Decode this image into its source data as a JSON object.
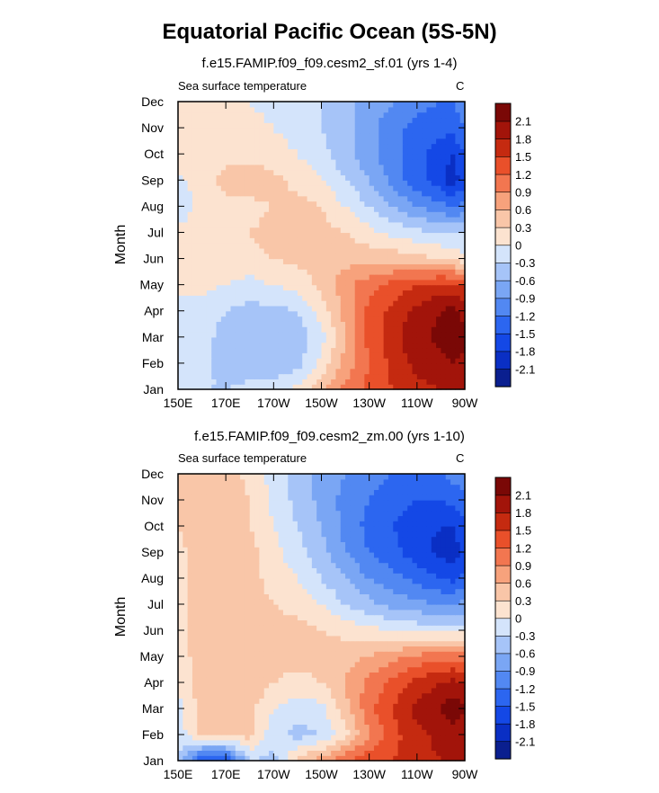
{
  "title": "Equatorial Pacific Ocean (5S-5N)",
  "palette": {
    "levels": [
      -2.1,
      -1.8,
      -1.5,
      -1.2,
      -0.9,
      -0.6,
      -0.3,
      0,
      0.3,
      0.6,
      0.9,
      1.2,
      1.5,
      1.8,
      2.1
    ],
    "level_labels": [
      "-2.1",
      "-1.8",
      "-1.5",
      "-1.2",
      "-0.9",
      "-0.6",
      "-0.3",
      "0",
      "0.3",
      "0.6",
      "0.9",
      "1.2",
      "1.5",
      "1.8",
      "2.1"
    ],
    "colors": [
      "#0a1f8f",
      "#0a2fc4",
      "#1448e6",
      "#2c66f0",
      "#5288f2",
      "#7aa6f4",
      "#a6c4f8",
      "#d4e4fb",
      "#fce3d0",
      "#f9c6a8",
      "#f7a27c",
      "#f27650",
      "#e9502a",
      "#c52a10",
      "#a2140a",
      "#7a0806"
    ]
  },
  "chart_data": [
    {
      "type": "heatmap",
      "subtitle": "f.e15.FAMIP.f09_f09.cesm2_sf.01 (yrs 1-4)",
      "left_label": "Sea surface temperature",
      "units": "C",
      "xlabel": "",
      "ylabel": "Month",
      "x_ticks": [
        "150E",
        "170E",
        "170W",
        "150W",
        "130W",
        "110W",
        "90W"
      ],
      "x_range_lon": [
        150,
        270
      ],
      "y_ticks": [
        "Jan",
        "Feb",
        "Mar",
        "Apr",
        "May",
        "Jun",
        "Jul",
        "Aug",
        "Sep",
        "Oct",
        "Nov",
        "Dec"
      ],
      "x_lon": [
        150,
        160,
        170,
        180,
        190,
        200,
        210,
        220,
        230,
        240,
        250,
        260,
        265,
        270
      ],
      "z": [
        [
          -0.2,
          -0.3,
          -0.3,
          -0.2,
          -0.1,
          0.1,
          0.5,
          1.0,
          1.3,
          1.5,
          1.7,
          1.8,
          1.9,
          2.0
        ],
        [
          -0.1,
          -0.2,
          -0.4,
          -0.5,
          -0.6,
          -0.4,
          0.1,
          0.7,
          1.2,
          1.6,
          1.9,
          2.0,
          2.1,
          2.0
        ],
        [
          -0.1,
          -0.2,
          -0.4,
          -0.5,
          -0.6,
          -0.5,
          -0.1,
          0.6,
          1.3,
          1.7,
          2.0,
          2.2,
          2.3,
          2.2
        ],
        [
          -0.1,
          -0.2,
          -0.3,
          -0.4,
          -0.4,
          -0.3,
          0.1,
          0.7,
          1.3,
          1.6,
          1.9,
          2.1,
          2.2,
          2.0
        ],
        [
          0.1,
          0.1,
          0.0,
          -0.1,
          0.0,
          0.1,
          0.4,
          0.8,
          1.1,
          1.3,
          1.5,
          1.6,
          1.6,
          1.5
        ],
        [
          0.2,
          0.2,
          0.2,
          0.2,
          0.3,
          0.4,
          0.4,
          0.5,
          0.5,
          0.5,
          0.4,
          0.3,
          0.2,
          0.1
        ],
        [
          0.1,
          0.2,
          0.3,
          0.3,
          0.4,
          0.5,
          0.4,
          0.3,
          0.1,
          -0.1,
          -0.2,
          -0.3,
          -0.3,
          -0.3
        ],
        [
          -0.3,
          0.2,
          0.2,
          0.2,
          0.3,
          0.4,
          0.3,
          0.0,
          -0.3,
          -0.6,
          -0.9,
          -1.1,
          -1.2,
          -1.1
        ],
        [
          -0.1,
          0.2,
          0.4,
          0.5,
          0.4,
          0.2,
          0.0,
          -0.3,
          -0.6,
          -1.0,
          -1.4,
          -1.7,
          -2.0,
          -1.6
        ],
        [
          0.2,
          0.2,
          0.2,
          0.2,
          0.1,
          0.0,
          -0.2,
          -0.5,
          -0.8,
          -1.1,
          -1.4,
          -1.7,
          -1.8,
          -1.5
        ],
        [
          0.1,
          0.2,
          0.2,
          0.1,
          0.0,
          -0.1,
          -0.3,
          -0.5,
          -0.8,
          -1.1,
          -1.3,
          -1.4,
          -1.4,
          -1.2
        ],
        [
          0.1,
          0.1,
          0.1,
          0.0,
          -0.1,
          -0.2,
          -0.3,
          -0.5,
          -0.7,
          -0.9,
          -1.1,
          -1.2,
          -1.2,
          -1.0
        ]
      ]
    },
    {
      "type": "heatmap",
      "subtitle": "f.e15.FAMIP.f09_f09.cesm2_zm.00 (yrs 1-10)",
      "left_label": "Sea surface temperature",
      "units": "C",
      "xlabel": "",
      "ylabel": "Month",
      "x_ticks": [
        "150E",
        "170E",
        "170W",
        "150W",
        "130W",
        "110W",
        "90W"
      ],
      "x_range_lon": [
        150,
        270
      ],
      "y_ticks": [
        "Jan",
        "Feb",
        "Mar",
        "Apr",
        "May",
        "Jun",
        "Jul",
        "Aug",
        "Sep",
        "Oct",
        "Nov",
        "Dec"
      ],
      "x_lon": [
        150,
        160,
        170,
        180,
        190,
        200,
        210,
        220,
        230,
        240,
        250,
        260,
        265,
        270
      ],
      "z": [
        [
          -0.3,
          -1.6,
          -1.7,
          -0.3,
          -0.4,
          0.4,
          0.8,
          1.2,
          1.4,
          1.5,
          1.7,
          1.8,
          1.9,
          1.8
        ],
        [
          -0.2,
          0.4,
          0.4,
          0.4,
          -0.2,
          -0.4,
          -0.3,
          0.2,
          0.9,
          1.4,
          1.7,
          1.9,
          2.0,
          1.9
        ],
        [
          -0.1,
          0.4,
          0.5,
          0.4,
          0.0,
          -0.2,
          -0.1,
          0.5,
          1.1,
          1.5,
          1.9,
          2.1,
          2.3,
          2.1
        ],
        [
          0.0,
          0.5,
          0.5,
          0.5,
          0.3,
          0.2,
          0.3,
          0.6,
          1.0,
          1.3,
          1.6,
          1.8,
          1.9,
          1.8
        ],
        [
          0.1,
          0.5,
          0.6,
          0.5,
          0.4,
          0.4,
          0.4,
          0.5,
          0.6,
          0.8,
          1.0,
          1.1,
          1.1,
          1.0
        ],
        [
          0.2,
          0.5,
          0.6,
          0.5,
          0.4,
          0.4,
          0.3,
          0.2,
          0.1,
          0.0,
          -0.1,
          -0.1,
          -0.1,
          -0.1
        ],
        [
          0.2,
          0.5,
          0.6,
          0.4,
          0.3,
          0.2,
          0.0,
          -0.3,
          -0.5,
          -0.7,
          -0.8,
          -0.9,
          -0.9,
          -0.8
        ],
        [
          0.1,
          0.5,
          0.6,
          0.4,
          0.2,
          0.0,
          -0.3,
          -0.6,
          -0.9,
          -1.1,
          -1.3,
          -1.5,
          -1.6,
          -1.4
        ],
        [
          0.2,
          0.5,
          0.6,
          0.4,
          0.1,
          -0.2,
          -0.5,
          -0.9,
          -1.2,
          -1.4,
          -1.7,
          -1.9,
          -2.0,
          -1.7
        ],
        [
          0.3,
          0.5,
          0.6,
          0.3,
          0.0,
          -0.3,
          -0.6,
          -1.0,
          -1.3,
          -1.5,
          -1.7,
          -1.8,
          -1.8,
          -1.6
        ],
        [
          0.3,
          0.5,
          0.5,
          0.3,
          -0.1,
          -0.4,
          -0.7,
          -1.0,
          -1.2,
          -1.4,
          -1.5,
          -1.5,
          -1.4,
          -1.3
        ],
        [
          0.3,
          0.5,
          0.5,
          0.2,
          -0.1,
          -0.4,
          -0.7,
          -0.9,
          -1.1,
          -1.2,
          -1.3,
          -1.2,
          -1.1,
          -1.0
        ]
      ]
    }
  ]
}
